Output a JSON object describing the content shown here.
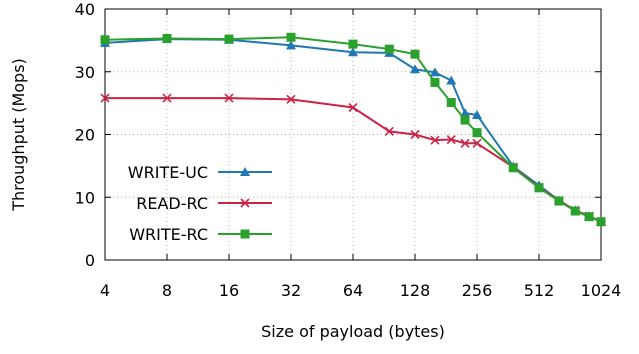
{
  "chart_data": {
    "type": "line",
    "title": "",
    "xlabel": "Size of payload (bytes)",
    "ylabel": "Throughput (Mops)",
    "x_scale": "log2",
    "xlim": [
      4,
      1024
    ],
    "ylim": [
      0,
      40
    ],
    "x_ticks": [
      4,
      8,
      16,
      32,
      64,
      128,
      256,
      512,
      1024
    ],
    "x_tick_labels": [
      "4",
      "8",
      "16",
      "32",
      "64",
      "128",
      "256",
      "512",
      "1024"
    ],
    "y_ticks": [
      0,
      10,
      20,
      30,
      40
    ],
    "y_tick_labels": [
      "0",
      "10",
      "20",
      "30",
      "40"
    ],
    "grid": true,
    "legend_position": "center-left",
    "series": [
      {
        "name": "WRITE-UC",
        "color": "#1f77b4",
        "marker": "triangle",
        "x": [
          4,
          8,
          16,
          32,
          64,
          96,
          128,
          160,
          192,
          224,
          256,
          384,
          512,
          640,
          768,
          896,
          1024
        ],
        "y": [
          34.6,
          35.2,
          35.1,
          34.2,
          33.1,
          33.0,
          30.4,
          29.9,
          28.6,
          23.4,
          23.1,
          14.9,
          11.9,
          9.5,
          7.9,
          7.0,
          6.1
        ]
      },
      {
        "name": "READ-RC",
        "color": "#cc2244",
        "marker": "x",
        "x": [
          4,
          8,
          16,
          32,
          64,
          96,
          128,
          160,
          192,
          224,
          256,
          384,
          512,
          640,
          768,
          896,
          1024
        ],
        "y": [
          25.8,
          25.8,
          25.8,
          25.6,
          24.3,
          20.5,
          20.0,
          19.1,
          19.2,
          18.6,
          18.6,
          14.8,
          11.6,
          9.5,
          7.9,
          7.0,
          6.1
        ]
      },
      {
        "name": "WRITE-RC",
        "color": "#2ca02c",
        "marker": "square",
        "x": [
          4,
          8,
          16,
          32,
          64,
          96,
          128,
          160,
          192,
          224,
          256,
          384,
          512,
          640,
          768,
          896,
          1024
        ],
        "y": [
          35.1,
          35.3,
          35.2,
          35.5,
          34.4,
          33.6,
          32.8,
          28.3,
          25.1,
          22.3,
          20.3,
          14.7,
          11.5,
          9.4,
          7.8,
          6.9,
          6.1
        ]
      }
    ]
  }
}
